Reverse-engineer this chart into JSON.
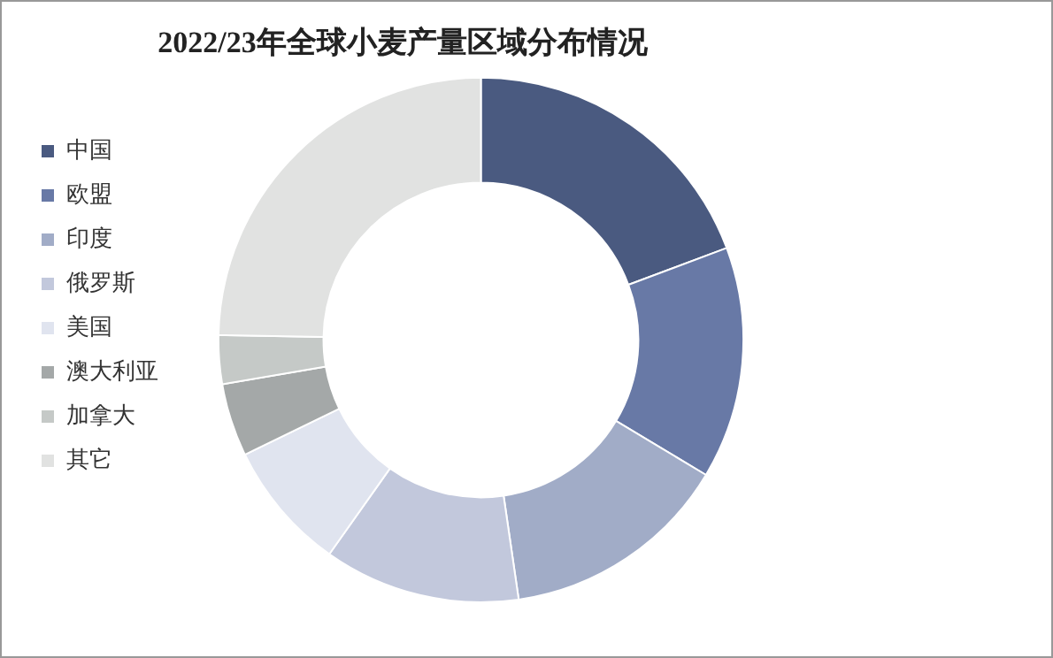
{
  "chart_data": {
    "type": "donut",
    "title": "2022/23年全球小麦产量区域分布情况",
    "categories": [
      "中国",
      "欧盟",
      "印度",
      "俄罗斯",
      "美国",
      "澳大利亚",
      "加拿大",
      "其它"
    ],
    "values": [
      19.3,
      14.3,
      14.1,
      12.1,
      8.0,
      4.5,
      3.0,
      24.7
    ],
    "colors": [
      "#4a5a80",
      "#6879a6",
      "#a1acc7",
      "#c2c8dc",
      "#e0e4ef",
      "#a4a8a8",
      "#c5c9c7",
      "#e1e2e1"
    ],
    "legend": "left"
  }
}
